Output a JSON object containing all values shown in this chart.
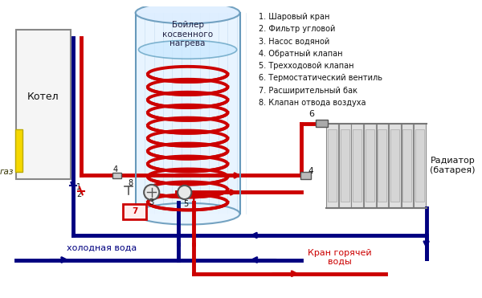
{
  "bg_color": "#ffffff",
  "legend_items": [
    "1. Шаровый кран",
    "2. Фильтр угловой",
    "3. Насос водяной",
    "4. Обратный клапан",
    "5. Трехходовой клапан",
    "6. Термостатический вентиль",
    "7. Расширительный бак",
    "8. Клапан отвода воздуха"
  ],
  "boiler_label": "Бойлер\nкосвенного\nнагрева",
  "kotel_label": "Котел",
  "gaz_label": "газ",
  "radiator_label": "Радиатор\n(батарея)",
  "cold_water_label": "холодная вода",
  "hot_water_label": "Кран горячей\nводы",
  "red": "#cc0000",
  "dblue": "#000080",
  "yellow": "#f5d800",
  "box7_edge": "#cc0000",
  "box7_face": "#ffeeee",
  "boiler_edge": "#6699bb",
  "boiler_face": "#e8f4ff",
  "boiler_hatch": "#99bbdd",
  "coil_color": "#cc0000",
  "kotel_edge": "#888888",
  "kotel_face": "#f5f5f5",
  "radiator_edge": "#888888",
  "radiator_face": "#e0e0e0",
  "text_dark": "#111111",
  "text_blue": "#000080",
  "text_red": "#cc0000"
}
